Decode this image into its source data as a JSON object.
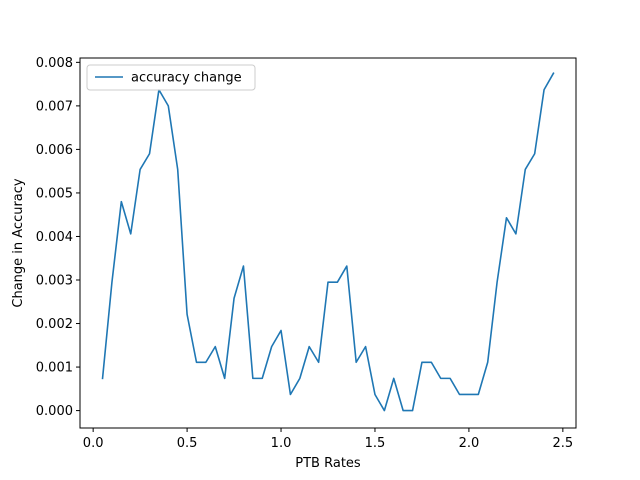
{
  "chart_data": {
    "type": "line",
    "xlabel": "PTB Rates",
    "ylabel": "Change in Accuracy",
    "xlim": [
      -0.07,
      2.57
    ],
    "ylim": [
      -0.0004,
      0.0081
    ],
    "xticks": [
      0.0,
      0.5,
      1.0,
      1.5,
      2.0,
      2.5
    ],
    "xtick_labels": [
      "0.0",
      "0.5",
      "1.0",
      "1.5",
      "2.0",
      "2.5"
    ],
    "yticks": [
      0.0,
      0.001,
      0.002,
      0.003,
      0.004,
      0.005,
      0.006,
      0.007,
      0.008
    ],
    "ytick_labels": [
      "0.000",
      "0.001",
      "0.002",
      "0.003",
      "0.004",
      "0.005",
      "0.006",
      "0.007",
      "0.008"
    ],
    "grid": false,
    "legend_position": "upper left",
    "series": [
      {
        "name": "accuracy change",
        "color": "#1f77b4",
        "x": [
          0.05,
          0.1,
          0.15,
          0.2,
          0.25,
          0.3,
          0.35,
          0.4,
          0.45,
          0.5,
          0.55,
          0.6,
          0.65,
          0.7,
          0.75,
          0.8,
          0.85,
          0.9,
          0.95,
          1.0,
          1.05,
          1.1,
          1.15,
          1.2,
          1.25,
          1.3,
          1.35,
          1.4,
          1.45,
          1.5,
          1.55,
          1.6,
          1.65,
          1.7,
          1.75,
          1.8,
          1.85,
          1.9,
          1.95,
          2.0,
          2.05,
          2.1,
          2.15,
          2.2,
          2.25,
          2.3,
          2.35,
          2.4,
          2.45
        ],
        "values": [
          0.00074,
          0.00295,
          0.0048,
          0.00406,
          0.00554,
          0.0059,
          0.00737,
          0.007,
          0.00554,
          0.00221,
          0.00111,
          0.00111,
          0.00147,
          0.00074,
          0.00258,
          0.00332,
          0.00074,
          0.00074,
          0.00147,
          0.00184,
          0.00037,
          0.00074,
          0.00147,
          0.00111,
          0.00295,
          0.00295,
          0.00332,
          0.00111,
          0.00147,
          0.00037,
          0.0,
          0.00074,
          0.0,
          0.0,
          0.00111,
          0.00111,
          0.00074,
          0.00074,
          0.00037,
          0.00037,
          0.00037,
          0.00111,
          0.00295,
          0.00443,
          0.00406,
          0.00554,
          0.0059,
          0.00737,
          0.00775
        ]
      }
    ]
  }
}
